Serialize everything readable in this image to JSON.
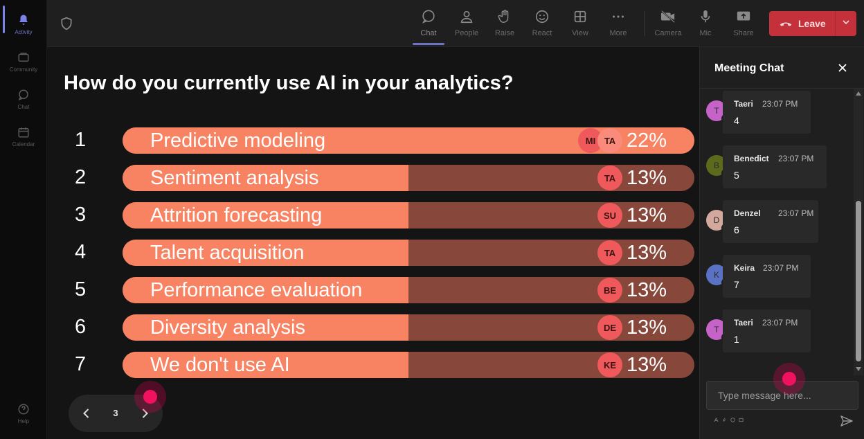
{
  "rail": {
    "items": [
      {
        "label": "Activity",
        "icon": "bell-icon",
        "active": true
      },
      {
        "label": "Community",
        "icon": "community-icon",
        "active": false
      },
      {
        "label": "Chat",
        "icon": "chat-icon",
        "active": false
      },
      {
        "label": "Calendar",
        "icon": "calendar-icon",
        "active": false
      }
    ],
    "help_label": "Help"
  },
  "toolbar": {
    "chat": "Chat",
    "people": "People",
    "raise": "Raise",
    "react": "React",
    "view": "View",
    "more": "More",
    "camera": "Camera",
    "mic": "Mic",
    "share": "Share",
    "leave": "Leave"
  },
  "poll": {
    "question": "How do you currently use AI in your analytics?",
    "options": [
      {
        "num": "1",
        "label": "Predictive modeling",
        "pct": "22%",
        "fraction": 1.0,
        "avatars": [
          "MI",
          "TA"
        ]
      },
      {
        "num": "2",
        "label": "Sentiment analysis",
        "pct": "13%",
        "fraction": 0.5,
        "avatars": [
          "TA"
        ]
      },
      {
        "num": "3",
        "label": "Attrition forecasting",
        "pct": "13%",
        "fraction": 0.5,
        "avatars": [
          "SU"
        ]
      },
      {
        "num": "4",
        "label": "Talent acquisition",
        "pct": "13%",
        "fraction": 0.5,
        "avatars": [
          "TA"
        ]
      },
      {
        "num": "5",
        "label": "Performance evaluation",
        "pct": "13%",
        "fraction": 0.5,
        "avatars": [
          "BE"
        ]
      },
      {
        "num": "6",
        "label": "Diversity analysis",
        "pct": "13%",
        "fraction": 0.5,
        "avatars": [
          "DE"
        ]
      },
      {
        "num": "7",
        "label": "We don't use AI",
        "pct": "13%",
        "fraction": 0.5,
        "avatars": [
          "KE"
        ]
      }
    ],
    "page": "3"
  },
  "chat": {
    "title": "Meeting Chat",
    "messages": [
      {
        "initial": "T",
        "name": "Taeri",
        "time": "23:07 PM",
        "text": "4",
        "color": "#c663c9"
      },
      {
        "initial": "B",
        "name": "Benedict",
        "time": "23:07 PM",
        "text": "5",
        "color": "#5c6a1c"
      },
      {
        "initial": "D",
        "name": "Denzel",
        "time": "23:07 PM",
        "text": "6",
        "color": "#d2a99c"
      },
      {
        "initial": "K",
        "name": "Keira",
        "time": "23:07 PM",
        "text": "7",
        "color": "#5b72c4"
      },
      {
        "initial": "T",
        "name": "Taeri",
        "time": "23:07 PM",
        "text": "1",
        "color": "#c663c9"
      }
    ],
    "compose_placeholder": "Type message here..."
  },
  "colors": {
    "bar_fill": "#f88363",
    "bar_track": "#87483b",
    "leave": "#c4313b",
    "accent": "#7b83eb",
    "cursor": "#f0125f"
  }
}
